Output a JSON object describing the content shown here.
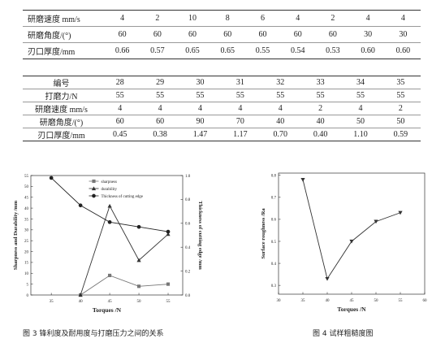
{
  "tables": [
    {
      "rows": [
        [
          "研磨速度 mm/s",
          "4",
          "2",
          "10",
          "8",
          "6",
          "4",
          "2",
          "4",
          "4"
        ],
        [
          "研磨角度/(°)",
          "60",
          "60",
          "60",
          "60",
          "60",
          "60",
          "60",
          "30",
          "30"
        ],
        [
          "刃口厚度/mm",
          "0.66",
          "0.57",
          "0.65",
          "0.65",
          "0.55",
          "0.54",
          "0.53",
          "0.60",
          "0.60"
        ]
      ]
    },
    {
      "rows": [
        [
          "编号",
          "28",
          "29",
          "30",
          "31",
          "32",
          "33",
          "34",
          "35"
        ],
        [
          "打磨力/N",
          "55",
          "55",
          "55",
          "55",
          "55",
          "55",
          "55",
          "55"
        ],
        [
          "研磨速度 mm/s",
          "4",
          "4",
          "4",
          "4",
          "4",
          "2",
          "4",
          "2"
        ],
        [
          "研磨角度/(°)",
          "60",
          "60",
          "90",
          "70",
          "40",
          "40",
          "50",
          "50"
        ],
        [
          "刃口厚度/mm",
          "0.45",
          "0.38",
          "1.47",
          "1.17",
          "0.70",
          "0.40",
          "1.10",
          "0.59"
        ]
      ]
    }
  ],
  "chart_data": [
    {
      "type": "line",
      "caption": "图 3 锋利度及耐用度与打磨压力之间的关系",
      "x_label": "Torques /N",
      "y_label": "Sharpness and Durability /mm",
      "y2_label": "Thickness of cutting edge /mm",
      "x": [
        35,
        40,
        45,
        50,
        55
      ],
      "xlim": [
        31.5,
        57.5
      ],
      "xticks": [
        35,
        40,
        45,
        50,
        55
      ],
      "ylim": [
        0,
        55
      ],
      "yticks": [
        0,
        5,
        10,
        15,
        20,
        25,
        30,
        35,
        40,
        45,
        50,
        55
      ],
      "y2lim": [
        0,
        1
      ],
      "y2ticks": [
        {
          "value": 0,
          "label": "0.0"
        },
        0.2,
        0.4,
        0.6,
        0.8,
        {
          "value": 1,
          "label": "1.0"
        }
      ],
      "legend": "upper center",
      "series": [
        {
          "name": "sharpness",
          "color": "#777777",
          "marker": "square",
          "values": [
            null,
            0,
            9,
            4,
            5
          ]
        },
        {
          "name": "durability",
          "color": "#333333",
          "marker": "triangle",
          "values": [
            null,
            0,
            41,
            16,
            28
          ]
        },
        {
          "name": "Thickness of cutting edge",
          "color": "#222222",
          "marker": "circle",
          "axis": "y2",
          "values": [
            0.98,
            0.75,
            0.61,
            0.57,
            0.53
          ]
        }
      ]
    },
    {
      "type": "line",
      "caption": "图 4 试样粗糙度图",
      "x_label": "Torques /N",
      "y_label": "Surface roughness /Ra",
      "x": [
        35,
        40,
        45,
        50,
        55
      ],
      "xlim": [
        30,
        60
      ],
      "xticks": [
        30,
        35,
        40,
        45,
        50,
        55,
        60
      ],
      "ylim": [
        0.26,
        0.81
      ],
      "yticks": [
        0.3,
        0.4,
        0.5,
        0.6,
        0.7,
        0.8
      ],
      "series": [
        {
          "color": "#333333",
          "marker": "triangle-down",
          "values": [
            0.78,
            0.33,
            0.5,
            0.59,
            0.63
          ]
        }
      ]
    }
  ]
}
